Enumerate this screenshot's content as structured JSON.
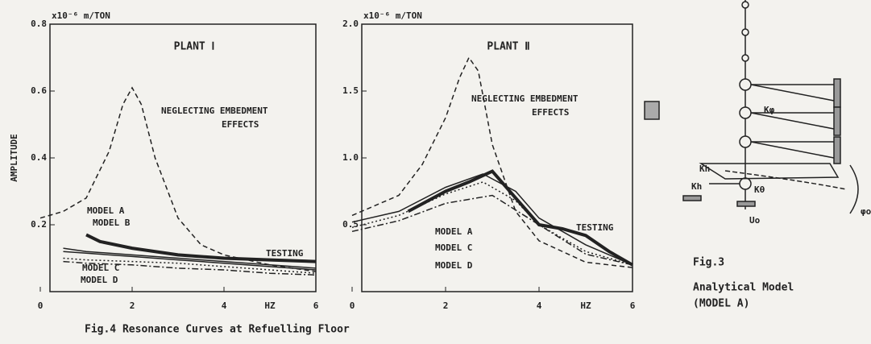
{
  "chart_data": [
    {
      "type": "line",
      "title": "PLANT Ⅰ",
      "y_unit": "x10⁻⁶ m/TON",
      "y_label": "AMPLITUDE",
      "x_label": "HZ",
      "xlim": [
        0,
        6
      ],
      "xticks": [
        0,
        2,
        4,
        6
      ],
      "ylim": [
        0,
        0.8
      ],
      "yticks": [
        0.2,
        0.4,
        0.6,
        0.8
      ],
      "annotations": [
        "NEGLECTING EMBEDMENT",
        "EFFECTS",
        "MODEL A",
        "MODEL B",
        "MODEL C",
        "MODEL D",
        "TESTING"
      ],
      "series": [
        {
          "name": "NEGLECTING EMBEDMENT EFFECTS",
          "color": "#222",
          "style": "dashed",
          "x": [
            0,
            0.5,
            1,
            1.5,
            1.8,
            2,
            2.2,
            2.5,
            3,
            3.5,
            4,
            5,
            6
          ],
          "values": [
            0.22,
            0.24,
            0.28,
            0.42,
            0.56,
            0.61,
            0.56,
            0.4,
            0.22,
            0.14,
            0.11,
            0.08,
            0.06
          ]
        },
        {
          "name": "MODEL A",
          "color": "#222",
          "style": "solid",
          "x": [
            0.5,
            1,
            2,
            3,
            4,
            5,
            6
          ],
          "values": [
            0.13,
            0.12,
            0.11,
            0.1,
            0.09,
            0.08,
            0.07
          ]
        },
        {
          "name": "MODEL B",
          "color": "#222",
          "style": "solid",
          "x": [
            0.5,
            1,
            2,
            3,
            4,
            5,
            6
          ],
          "values": [
            0.12,
            0.115,
            0.105,
            0.095,
            0.085,
            0.075,
            0.065
          ]
        },
        {
          "name": "MODEL C",
          "color": "#222",
          "style": "dotted",
          "x": [
            0.5,
            1,
            2,
            3,
            4,
            5,
            6
          ],
          "values": [
            0.1,
            0.095,
            0.09,
            0.085,
            0.075,
            0.065,
            0.055
          ]
        },
        {
          "name": "MODEL D",
          "color": "#222",
          "style": "dashdot",
          "x": [
            0.5,
            1,
            2,
            3,
            4,
            5,
            6
          ],
          "values": [
            0.09,
            0.085,
            0.08,
            0.07,
            0.065,
            0.055,
            0.05
          ]
        },
        {
          "name": "TESTING",
          "color": "#222",
          "style": "thick",
          "x": [
            1,
            1.3,
            2,
            3,
            4,
            5,
            6
          ],
          "values": [
            0.17,
            0.15,
            0.13,
            0.11,
            0.1,
            0.095,
            0.09
          ]
        }
      ]
    },
    {
      "type": "line",
      "title": "PLANT Ⅱ",
      "y_unit": "x10⁻⁶ m/TON",
      "x_label": "HZ",
      "xlim": [
        0,
        6
      ],
      "xticks": [
        0,
        2,
        4,
        6
      ],
      "ylim": [
        0,
        2
      ],
      "yticks": [
        0.5,
        {
          "value": 1,
          "label": "1.0"
        },
        1.5,
        {
          "value": 2,
          "label": "2.0"
        }
      ],
      "annotations": [
        "NEGLECTING EMBEDMENT",
        "EFFECTS",
        "MODEL A",
        "MODEL C",
        "MODEL D",
        "TESTING"
      ],
      "series": [
        {
          "name": "NEGLECTING EMBEDMENT EFFECTS",
          "color": "#222",
          "style": "dashed",
          "x": [
            0,
            1,
            1.5,
            2,
            2.3,
            2.5,
            2.7,
            3,
            3.5,
            4,
            5,
            6
          ],
          "values": [
            0.57,
            0.72,
            0.95,
            1.3,
            1.6,
            1.75,
            1.65,
            1.1,
            0.6,
            0.38,
            0.22,
            0.18
          ]
        },
        {
          "name": "MODEL A",
          "color": "#222",
          "style": "solid",
          "x": [
            0,
            1,
            2,
            2.8,
            3.5,
            4,
            5,
            6
          ],
          "values": [
            0.52,
            0.6,
            0.78,
            0.88,
            0.75,
            0.55,
            0.35,
            0.2
          ]
        },
        {
          "name": "MODEL C",
          "color": "#222",
          "style": "dotted",
          "x": [
            0,
            1,
            2,
            2.8,
            3.5,
            4,
            5,
            6
          ],
          "values": [
            0.48,
            0.57,
            0.73,
            0.82,
            0.68,
            0.5,
            0.3,
            0.2
          ]
        },
        {
          "name": "MODEL D",
          "color": "#222",
          "style": "dashdot",
          "x": [
            0,
            1,
            2,
            3,
            4,
            5,
            6
          ],
          "values": [
            0.45,
            0.53,
            0.66,
            0.72,
            0.5,
            0.28,
            0.2
          ]
        },
        {
          "name": "TESTING",
          "color": "#222",
          "style": "thick",
          "x": [
            1.2,
            2,
            2.5,
            3,
            3.5,
            4,
            4.5,
            5,
            5.5,
            6
          ],
          "values": [
            0.6,
            0.75,
            0.82,
            0.9,
            0.7,
            0.5,
            0.47,
            0.42,
            0.3,
            0.2
          ]
        }
      ]
    }
  ],
  "caption": "Fig.4  Resonance Curves at Refuelling Floor",
  "diagram": {
    "labels": [
      "Kh",
      "Kφ",
      "Kh",
      "Kθ",
      "Uo",
      "φo"
    ],
    "caption": [
      "Fig.3",
      "Analytical Model",
      "(MODEL A)"
    ]
  }
}
